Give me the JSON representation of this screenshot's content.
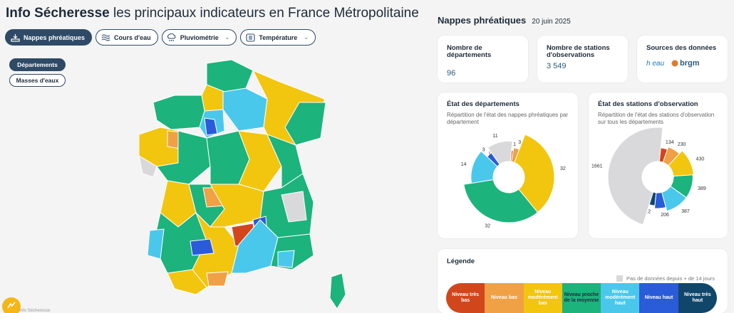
{
  "header": {
    "title_bold": "Info Sécheresse",
    "title_rest": "les principaux indicateurs en France Métropolitaine"
  },
  "tabs": [
    {
      "label": "Nappes phréatiques",
      "icon": "groundwater-icon",
      "active": true
    },
    {
      "label": "Cours d'eau",
      "icon": "river-icon"
    },
    {
      "label": "Pluviométrie",
      "icon": "rain-icon"
    },
    {
      "label": "Température",
      "icon": "thermometer-icon"
    }
  ],
  "subtabs": [
    {
      "label": "Départements",
      "active": true
    },
    {
      "label": "Masses d'eaux"
    }
  ],
  "map": {
    "brand": "Info Sécheresse"
  },
  "panel": {
    "title": "Nappes phréatiques",
    "date": "20 juin 2025"
  },
  "stats": [
    {
      "label": "Nombre de départements",
      "value": "96"
    },
    {
      "label": "Nombre de stations d'observations",
      "value": "3 549"
    }
  ],
  "sources": {
    "label": "Sources des données",
    "logo1": "h eau",
    "logo2": "brgm"
  },
  "chart_data": [
    {
      "type": "pie",
      "title": "État des départements",
      "subtitle": "Répartition de l'état des nappes phréatiques par département",
      "categories": [
        "Niveau très bas",
        "Niveau bas",
        "Niveau modérément bas",
        "Niveau proche de la moyenne",
        "Niveau modérément haut",
        "Niveau haut",
        "Niveau très haut",
        "Pas de données"
      ],
      "values": [
        1,
        3,
        32,
        32,
        14,
        3,
        0,
        11
      ],
      "labels": [
        "1",
        "3",
        "32",
        "32",
        "14",
        "3",
        "0",
        "11"
      ]
    },
    {
      "type": "pie",
      "title": "État des stations d'observation",
      "subtitle": "Répartition de l'état des stations d'observation sur tous les départements",
      "categories": [
        "Niveau très bas",
        "Niveau bas",
        "Niveau modérément bas",
        "Niveau proche de la moyenne",
        "Niveau modérément haut",
        "Niveau haut",
        "Niveau très haut",
        "Pas de données"
      ],
      "values": [
        134,
        230,
        430,
        389,
        387,
        206,
        112,
        1661
      ],
      "labels": [
        "134",
        "230",
        "430",
        "389",
        "387",
        "206",
        "112",
        "1661"
      ]
    }
  ],
  "legend": {
    "title": "Légende",
    "no_data": "Pas de données depuis + de 14 jours",
    "items": [
      {
        "label": "Niveau très bas",
        "color": "#d2461c",
        "text": "#ffffff"
      },
      {
        "label": "Niveau bas",
        "color": "#f0a045",
        "text": "#ffffff"
      },
      {
        "label": "Niveau modérément bas",
        "color": "#f2c50f",
        "text": "#ffffff"
      },
      {
        "label": "Niveau proche de la moyenne",
        "color": "#1cb37c",
        "text": "#1d2b3a"
      },
      {
        "label": "Niveau modérément haut",
        "color": "#49c8ec",
        "text": "#ffffff"
      },
      {
        "label": "Niveau haut",
        "color": "#2a5bd8",
        "text": "#ffffff"
      },
      {
        "label": "Niveau très haut",
        "color": "#10466a",
        "text": "#ffffff"
      }
    ],
    "no_data_color": "#d9d9dc"
  }
}
